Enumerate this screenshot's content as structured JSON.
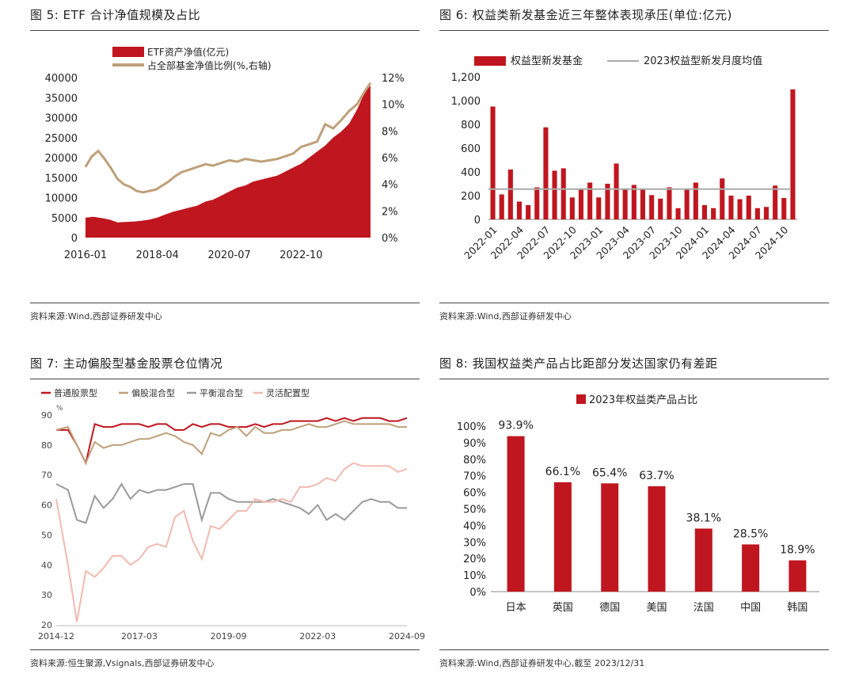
{
  "panels": {
    "p5": {
      "title": "图 5:  ETF 合计净值规模及占比",
      "source": "资料来源:Wind,西部证券研发中心"
    },
    "p6": {
      "title": "图 6:  权益类新发基金近三年整体表现承压(单位:亿元)",
      "source": "资料来源:Wind,西部证券研发中心"
    },
    "p7": {
      "title": "图 7:  主动偏股型基金股票仓位情况",
      "source": "资料来源:恒生聚源,Vsignals,西部证券研发中心"
    },
    "p8": {
      "title": "图 8:  我国权益类产品占比距部分发达国家仍有差距",
      "source": "资料来源:Wind,西部证券研发中心,截至 2023/12/31"
    }
  },
  "chart_data": [
    {
      "id": "fig5",
      "type": "area",
      "title": "",
      "legend": [
        "ETF资产净值(亿元)",
        "占全部基金净值比例(%,右轴)"
      ],
      "x_ticks": [
        "2016-01",
        "2018-04",
        "2020-07",
        "2022-10"
      ],
      "y_left_ticks": [
        "0",
        "5000",
        "10000",
        "15000",
        "20000",
        "25000",
        "30000",
        "35000",
        "40000"
      ],
      "y_right_ticks": [
        "0%",
        "2%",
        "4%",
        "6%",
        "8%",
        "10%",
        "12%"
      ],
      "ylim_left": [
        0,
        40000
      ],
      "ylim_right": [
        0,
        12
      ],
      "colors": {
        "area": "#c0161f",
        "line": "#bfa07a"
      },
      "series": [
        {
          "name": "ETF资产净值(亿元)",
          "axis": "left",
          "kind": "area",
          "x": [
            2016.0,
            2016.25,
            2016.5,
            2016.75,
            2017.0,
            2017.25,
            2017.5,
            2017.75,
            2018.0,
            2018.25,
            2018.5,
            2018.75,
            2019.0,
            2019.25,
            2019.5,
            2019.75,
            2020.0,
            2020.25,
            2020.5,
            2020.75,
            2021.0,
            2021.25,
            2021.5,
            2021.75,
            2022.0,
            2022.25,
            2022.5,
            2022.75,
            2023.0,
            2023.25,
            2023.5,
            2023.75,
            2024.0,
            2024.25,
            2024.5,
            2024.75,
            2024.92
          ],
          "values": [
            5000,
            5200,
            4900,
            4500,
            3800,
            3900,
            4000,
            4200,
            4500,
            5000,
            5800,
            6500,
            7000,
            7500,
            8000,
            9000,
            9500,
            10500,
            11500,
            12500,
            13000,
            14000,
            14500,
            15000,
            15500,
            16500,
            17500,
            18500,
            20000,
            21500,
            23000,
            25000,
            26500,
            28500,
            32000,
            36500,
            38000
          ]
        },
        {
          "name": "占全部基金净值比例(%,右轴)",
          "axis": "right",
          "kind": "line",
          "x": [
            2016.0,
            2016.2,
            2016.4,
            2016.6,
            2016.8,
            2017.0,
            2017.2,
            2017.4,
            2017.6,
            2017.8,
            2018.0,
            2018.2,
            2018.4,
            2018.6,
            2018.8,
            2019.0,
            2019.25,
            2019.5,
            2019.75,
            2020.0,
            2020.25,
            2020.5,
            2020.75,
            2021.0,
            2021.25,
            2021.5,
            2021.75,
            2022.0,
            2022.25,
            2022.5,
            2022.75,
            2023.0,
            2023.25,
            2023.5,
            2023.75,
            2024.0,
            2024.25,
            2024.5,
            2024.75,
            2024.92
          ],
          "values": [
            5.3,
            6.1,
            6.5,
            5.9,
            5.2,
            4.4,
            4.0,
            3.8,
            3.5,
            3.4,
            3.5,
            3.6,
            3.9,
            4.2,
            4.6,
            4.9,
            5.1,
            5.3,
            5.5,
            5.4,
            5.6,
            5.8,
            5.7,
            5.9,
            5.8,
            5.7,
            5.8,
            5.9,
            6.1,
            6.3,
            6.8,
            7.0,
            7.2,
            8.5,
            8.2,
            8.8,
            9.5,
            10.0,
            11.0,
            11.6
          ]
        }
      ]
    },
    {
      "id": "fig6",
      "type": "bar",
      "title": "",
      "legend": [
        "权益型新发基金",
        "2023权益型新发月度均值"
      ],
      "y_ticks": [
        "0",
        "200",
        "400",
        "600",
        "800",
        "1,000",
        "1,200"
      ],
      "ylim": [
        0,
        1200
      ],
      "reference_line": 255,
      "colors": {
        "bar": "#c0161f",
        "ref": "#aaaaaa"
      },
      "x_ticks": [
        "2022-01",
        "2022-04",
        "2022-07",
        "2022-10",
        "2023-01",
        "2023-04",
        "2023-07",
        "2023-10",
        "2024-01",
        "2024-04",
        "2024-07",
        "2024-10"
      ],
      "categories": [
        "2022-01",
        "2022-02",
        "2022-03",
        "2022-04",
        "2022-05",
        "2022-06",
        "2022-07",
        "2022-08",
        "2022-09",
        "2022-10",
        "2022-11",
        "2022-12",
        "2023-01",
        "2023-02",
        "2023-03",
        "2023-04",
        "2023-05",
        "2023-06",
        "2023-07",
        "2023-08",
        "2023-09",
        "2023-10",
        "2023-11",
        "2023-12",
        "2024-01",
        "2024-02",
        "2024-03",
        "2024-04",
        "2024-05",
        "2024-06",
        "2024-07",
        "2024-08",
        "2024-09",
        "2024-10",
        "2024-11"
      ],
      "values": [
        950,
        210,
        420,
        150,
        120,
        270,
        775,
        410,
        430,
        185,
        250,
        310,
        185,
        300,
        470,
        250,
        290,
        250,
        205,
        175,
        270,
        95,
        250,
        310,
        120,
        95,
        345,
        200,
        170,
        200,
        95,
        105,
        285,
        180,
        1095
      ]
    },
    {
      "id": "fig7",
      "type": "line",
      "title": "",
      "y_unit": "%",
      "legend": [
        "普通股票型",
        "偏股混合型",
        "平衡混合型",
        "灵活配置型"
      ],
      "x_ticks": [
        "2014-12",
        "2017-03",
        "2019-09",
        "2022-03",
        "2024-09"
      ],
      "y_ticks": [
        "20",
        "30",
        "40",
        "50",
        "60",
        "70",
        "80",
        "90"
      ],
      "ylim": [
        20,
        90
      ],
      "xlim": [
        2014.92,
        2024.75
      ],
      "series": [
        {
          "name": "普通股票型",
          "color": "#c0161f",
          "x": [
            2014.92,
            2015.25,
            2015.5,
            2015.75,
            2016.0,
            2016.25,
            2016.5,
            2016.75,
            2017.0,
            2017.25,
            2017.5,
            2017.75,
            2018.0,
            2018.25,
            2018.5,
            2018.75,
            2019.0,
            2019.25,
            2019.5,
            2019.75,
            2020.0,
            2020.25,
            2020.5,
            2020.75,
            2021.0,
            2021.25,
            2021.5,
            2021.75,
            2022.0,
            2022.25,
            2022.5,
            2022.75,
            2023.0,
            2023.25,
            2023.5,
            2023.75,
            2024.0,
            2024.25,
            2024.5,
            2024.75
          ],
          "values": [
            85,
            85,
            80,
            74,
            87,
            86,
            86,
            87,
            87,
            87,
            86,
            87,
            87,
            85,
            85,
            87,
            86,
            87,
            87,
            86,
            86,
            86,
            87,
            86,
            87,
            87,
            88,
            88,
            88,
            88,
            89,
            88,
            89,
            88,
            89,
            89,
            89,
            88,
            88,
            89
          ]
        },
        {
          "name": "偏股混合型",
          "color": "#bfa07a",
          "x": [
            2014.92,
            2015.25,
            2015.5,
            2015.75,
            2016.0,
            2016.25,
            2016.5,
            2016.75,
            2017.0,
            2017.25,
            2017.5,
            2017.75,
            2018.0,
            2018.25,
            2018.5,
            2018.75,
            2019.0,
            2019.25,
            2019.5,
            2019.75,
            2020.0,
            2020.25,
            2020.5,
            2020.75,
            2021.0,
            2021.25,
            2021.5,
            2021.75,
            2022.0,
            2022.25,
            2022.5,
            2022.75,
            2023.0,
            2023.25,
            2023.5,
            2023.75,
            2024.0,
            2024.25,
            2024.5,
            2024.75
          ],
          "values": [
            85,
            86,
            80,
            74,
            81,
            79,
            80,
            80,
            81,
            82,
            82,
            83,
            84,
            83,
            81,
            80,
            77,
            84,
            83,
            85,
            86,
            83,
            86,
            84,
            84,
            85,
            85,
            86,
            87,
            86,
            86,
            87,
            88,
            87,
            87,
            87,
            87,
            87,
            86,
            86
          ]
        },
        {
          "name": "平衡混合型",
          "color": "#9a9a9a",
          "x": [
            2014.92,
            2015.25,
            2015.5,
            2015.75,
            2016.0,
            2016.25,
            2016.5,
            2016.75,
            2017.0,
            2017.25,
            2017.5,
            2017.75,
            2018.0,
            2018.25,
            2018.5,
            2018.75,
            2019.0,
            2019.25,
            2019.5,
            2019.75,
            2020.0,
            2020.25,
            2020.5,
            2020.75,
            2021.0,
            2021.25,
            2021.5,
            2021.75,
            2022.0,
            2022.25,
            2022.5,
            2022.75,
            2023.0,
            2023.25,
            2023.5,
            2023.75,
            2024.0,
            2024.25,
            2024.5,
            2024.75
          ],
          "values": [
            67,
            65,
            55,
            54,
            63,
            59,
            62,
            67,
            62,
            65,
            64,
            65,
            65,
            66,
            67,
            67,
            55,
            64,
            64,
            62,
            61,
            61,
            61,
            61,
            62,
            61,
            60,
            59,
            57,
            60,
            55,
            57,
            55,
            58,
            61,
            62,
            61,
            61,
            59,
            59
          ]
        },
        {
          "name": "灵活配置型",
          "color": "#f2b9b0",
          "x": [
            2014.92,
            2015.25,
            2015.5,
            2015.75,
            2016.0,
            2016.25,
            2016.5,
            2016.75,
            2017.0,
            2017.25,
            2017.5,
            2017.75,
            2018.0,
            2018.25,
            2018.5,
            2018.75,
            2019.0,
            2019.25,
            2019.5,
            2019.75,
            2020.0,
            2020.25,
            2020.5,
            2020.75,
            2021.0,
            2021.25,
            2021.5,
            2021.75,
            2022.0,
            2022.25,
            2022.5,
            2022.75,
            2023.0,
            2023.25,
            2023.5,
            2023.75,
            2024.0,
            2024.25,
            2024.5,
            2024.75
          ],
          "values": [
            62,
            40,
            21,
            38,
            36,
            39,
            43,
            43,
            40,
            42,
            46,
            47,
            46,
            56,
            58,
            48,
            42,
            53,
            52,
            55,
            58,
            58,
            62,
            61,
            61,
            62,
            61,
            66,
            66,
            67,
            69,
            68,
            72,
            74,
            73,
            73,
            73,
            73,
            71,
            72
          ]
        }
      ]
    },
    {
      "id": "fig8",
      "type": "bar",
      "title": "",
      "legend": [
        "2023年权益类产品占比"
      ],
      "y_ticks": [
        "0%",
        "10%",
        "20%",
        "30%",
        "40%",
        "50%",
        "60%",
        "70%",
        "80%",
        "90%",
        "100%"
      ],
      "ylim": [
        0,
        100
      ],
      "colors": {
        "bar": "#c0161f"
      },
      "categories": [
        "日本",
        "英国",
        "德国",
        "美国",
        "法国",
        "中国",
        "韩国"
      ],
      "values": [
        93.9,
        66.1,
        65.4,
        63.7,
        38.1,
        28.5,
        18.9
      ],
      "data_labels": [
        "93.9%",
        "66.1%",
        "65.4%",
        "63.7%",
        "38.1%",
        "28.5%",
        "18.9%"
      ]
    }
  ]
}
